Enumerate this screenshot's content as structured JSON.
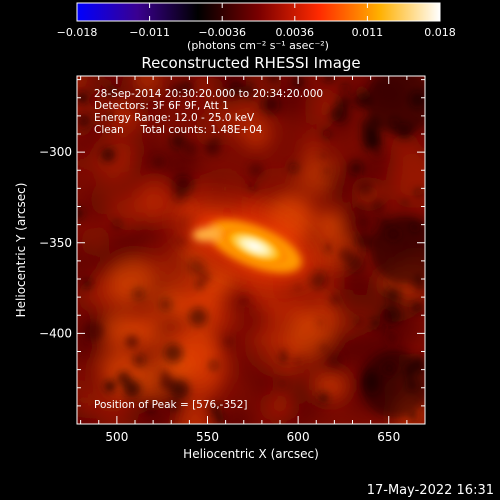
{
  "colorbar": {
    "ticks": [
      "-0.018",
      "-0.011",
      "-0.0036",
      "0.0036",
      "0.011",
      "0.018"
    ],
    "unit_label": "(photons cm⁻² s⁻¹ asec⁻²)",
    "range": [
      -0.018,
      0.018
    ]
  },
  "chart_data": {
    "type": "heatmap",
    "title": "Reconstructed RHESSI Image",
    "xlabel": "Heliocentric X (arcsec)",
    "ylabel": "Heliocentric Y (arcsec)",
    "xlim": [
      478,
      670
    ],
    "ylim": [
      -450,
      -258
    ],
    "x_ticks": [
      500,
      550,
      600,
      650
    ],
    "y_ticks": [
      -300,
      -350,
      -400
    ],
    "x_tick_labels": [
      "500",
      "550",
      "600",
      "650"
    ],
    "y_tick_labels": [
      "−300",
      "−350",
      "−400"
    ],
    "peak": [
      576,
      -352
    ],
    "info_lines": [
      "28-Sep-2014 20:30:20.000 to 20:34:20.000",
      "Detectors: 3F 6F 9F, Att 1",
      "Energy Range: 12.0 - 25.0 keV",
      "Clean     Total counts: 1.48E+04"
    ],
    "peak_label": "Position of Peak = [576,-352]",
    "colormap": [
      "#0000ff",
      "#3a0090",
      "#000000",
      "#7a0000",
      "#ff2a00",
      "#ffb000",
      "#ffffff"
    ]
  },
  "footer": {
    "date": "17-May-2022 16:31"
  }
}
